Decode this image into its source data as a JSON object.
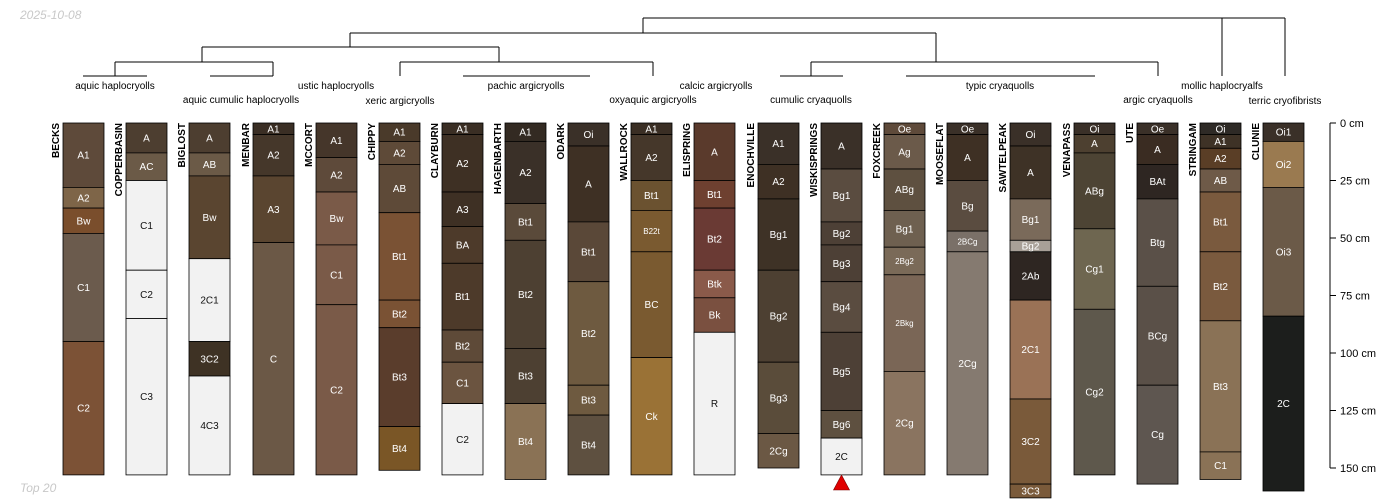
{
  "date_stamp": "2025-10-08",
  "footer_note": "Top 20",
  "depth_axis": {
    "unit": "cm",
    "ticks": [
      {
        "value": 0,
        "label": "0 cm"
      },
      {
        "value": 25,
        "label": "25 cm"
      },
      {
        "value": 50,
        "label": "50 cm"
      },
      {
        "value": 75,
        "label": "75 cm"
      },
      {
        "value": 100,
        "label": "100 cm"
      },
      {
        "value": 125,
        "label": "125 cm"
      },
      {
        "value": 150,
        "label": "150 cm"
      }
    ]
  },
  "truncation_marker": {
    "profile": "WISKISPRINGS",
    "color": "#e00000"
  },
  "subgroup_labels": [
    {
      "text": "aquic haplocryolls"
    },
    {
      "text": "aquic cumulic haplocryolls"
    },
    {
      "text": "ustic haplocryolls"
    },
    {
      "text": "xeric argicryolls"
    },
    {
      "text": "pachic argicryolls"
    },
    {
      "text": "calcic argicryolls"
    },
    {
      "text": "oxyaquic argicryolls"
    },
    {
      "text": "cumulic cryaquolls"
    },
    {
      "text": "typic cryaquolls"
    },
    {
      "text": "mollic haplocryalfs"
    },
    {
      "text": "argic cryaquolls"
    },
    {
      "text": "terric cryofibrists"
    }
  ],
  "profiles": [
    {
      "name": "BECKS",
      "horizons": [
        {
          "name": "A1",
          "top": 0,
          "bottom": 28,
          "color": "#5e4a3a"
        },
        {
          "name": "A2",
          "top": 28,
          "bottom": 37,
          "color": "#7e6548"
        },
        {
          "name": "Bw",
          "top": 37,
          "bottom": 48,
          "color": "#7a4e2c"
        },
        {
          "name": "C1",
          "top": 48,
          "bottom": 95,
          "color": "#6b5b4d"
        },
        {
          "name": "C2",
          "top": 95,
          "bottom": 153,
          "color": "#7c5236"
        }
      ]
    },
    {
      "name": "COPPERBASIN",
      "horizons": [
        {
          "name": "A",
          "top": 0,
          "bottom": 13,
          "color": "#4d3e30"
        },
        {
          "name": "AC",
          "top": 13,
          "bottom": 25,
          "color": "#6b5a47"
        },
        {
          "name": "C1",
          "top": 25,
          "bottom": 64,
          "color": "#f2f2f2"
        },
        {
          "name": "C2",
          "top": 64,
          "bottom": 85,
          "color": "#f2f2f2"
        },
        {
          "name": "C3",
          "top": 85,
          "bottom": 153,
          "color": "#f2f2f2"
        }
      ]
    },
    {
      "name": "BIGLOST",
      "horizons": [
        {
          "name": "A",
          "top": 0,
          "bottom": 13,
          "color": "#4d3e30"
        },
        {
          "name": "AB",
          "top": 13,
          "bottom": 23,
          "color": "#6b5a47"
        },
        {
          "name": "Bw",
          "top": 23,
          "bottom": 59,
          "color": "#5a4530"
        },
        {
          "name": "2C1",
          "top": 59,
          "bottom": 95,
          "color": "#f2f2f2"
        },
        {
          "name": "3C2",
          "top": 95,
          "bottom": 110,
          "color": "#3e3224"
        },
        {
          "name": "4C3",
          "top": 110,
          "bottom": 153,
          "color": "#f2f2f2"
        }
      ]
    },
    {
      "name": "MENBAR",
      "horizons": [
        {
          "name": "A1",
          "top": 0,
          "bottom": 5,
          "color": "#3a2e24"
        },
        {
          "name": "A2",
          "top": 5,
          "bottom": 23,
          "color": "#45372a"
        },
        {
          "name": "A3",
          "top": 23,
          "bottom": 52,
          "color": "#5a4530"
        },
        {
          "name": "C",
          "top": 52,
          "bottom": 153,
          "color": "#6b5846"
        }
      ]
    },
    {
      "name": "MCCORT",
      "horizons": [
        {
          "name": "A1",
          "top": 0,
          "bottom": 15,
          "color": "#45362a"
        },
        {
          "name": "A2",
          "top": 15,
          "bottom": 30,
          "color": "#5e4a3a"
        },
        {
          "name": "Bw",
          "top": 30,
          "bottom": 53,
          "color": "#7a5a48"
        },
        {
          "name": "C1",
          "top": 53,
          "bottom": 79,
          "color": "#7a5a48"
        },
        {
          "name": "C2",
          "top": 79,
          "bottom": 153,
          "color": "#7a5a48"
        }
      ]
    },
    {
      "name": "CHIPPY",
      "horizons": [
        {
          "name": "A1",
          "top": 0,
          "bottom": 8,
          "color": "#4a3a2a"
        },
        {
          "name": "A2",
          "top": 8,
          "bottom": 18,
          "color": "#5e4a38"
        },
        {
          "name": "AB",
          "top": 18,
          "bottom": 39,
          "color": "#5e4a38"
        },
        {
          "name": "Bt1",
          "top": 39,
          "bottom": 77,
          "color": "#7a5234"
        },
        {
          "name": "Bt2",
          "top": 77,
          "bottom": 89,
          "color": "#7a5234"
        },
        {
          "name": "Bt3",
          "top": 89,
          "bottom": 132,
          "color": "#5a3d2c"
        },
        {
          "name": "Bt4",
          "top": 132,
          "bottom": 151,
          "color": "#7a5626"
        }
      ]
    },
    {
      "name": "CLAYBURN",
      "horizons": [
        {
          "name": "A1",
          "top": 0,
          "bottom": 5,
          "color": "#3a2e24"
        },
        {
          "name": "A2",
          "top": 5,
          "bottom": 30,
          "color": "#3e3024"
        },
        {
          "name": "A3",
          "top": 30,
          "bottom": 45,
          "color": "#3e3024"
        },
        {
          "name": "BA",
          "top": 45,
          "bottom": 61,
          "color": "#4d3a2a"
        },
        {
          "name": "Bt1",
          "top": 61,
          "bottom": 90,
          "color": "#4d3a2a"
        },
        {
          "name": "Bt2",
          "top": 90,
          "bottom": 104,
          "color": "#5e4a38"
        },
        {
          "name": "C1",
          "top": 104,
          "bottom": 122,
          "color": "#6b5440"
        },
        {
          "name": "C2",
          "top": 122,
          "bottom": 153,
          "color": "#f2f2f2"
        }
      ]
    },
    {
      "name": "HAGENBARTH",
      "horizons": [
        {
          "name": "A1",
          "top": 0,
          "bottom": 8,
          "color": "#332a22"
        },
        {
          "name": "A2",
          "top": 8,
          "bottom": 35,
          "color": "#3a3028"
        },
        {
          "name": "Bt1",
          "top": 35,
          "bottom": 51,
          "color": "#5a4a3a"
        },
        {
          "name": "Bt2",
          "top": 51,
          "bottom": 98,
          "color": "#4d4032"
        },
        {
          "name": "Bt3",
          "top": 98,
          "bottom": 122,
          "color": "#4d4032"
        },
        {
          "name": "Bt4",
          "top": 122,
          "bottom": 155,
          "color": "#8a7255"
        }
      ]
    },
    {
      "name": "ODARK",
      "horizons": [
        {
          "name": "Oi",
          "top": 0,
          "bottom": 10,
          "color": "#3a3028"
        },
        {
          "name": "A",
          "top": 10,
          "bottom": 43,
          "color": "#3e3024"
        },
        {
          "name": "Bt1",
          "top": 43,
          "bottom": 69,
          "color": "#5a4838"
        },
        {
          "name": "Bt2",
          "top": 69,
          "bottom": 114,
          "color": "#6e5a40"
        },
        {
          "name": "Bt3",
          "top": 114,
          "bottom": 127,
          "color": "#6e5a40"
        },
        {
          "name": "Bt4",
          "top": 127,
          "bottom": 153,
          "color": "#5e5040"
        }
      ]
    },
    {
      "name": "WALLROCK",
      "horizons": [
        {
          "name": "A1",
          "top": 0,
          "bottom": 5,
          "color": "#3a2e24"
        },
        {
          "name": "A2",
          "top": 5,
          "bottom": 25,
          "color": "#45372a"
        },
        {
          "name": "Bt1",
          "top": 25,
          "bottom": 38,
          "color": "#6b5230"
        },
        {
          "name": "B22t",
          "top": 38,
          "bottom": 56,
          "color": "#7a5a30"
        },
        {
          "name": "BC",
          "top": 56,
          "bottom": 102,
          "color": "#7a5a30"
        },
        {
          "name": "Ck",
          "top": 102,
          "bottom": 153,
          "color": "#9a7236"
        }
      ]
    },
    {
      "name": "ELISPRING",
      "horizons": [
        {
          "name": "A",
          "top": 0,
          "bottom": 25,
          "color": "#5a3a2c"
        },
        {
          "name": "Bt1",
          "top": 25,
          "bottom": 37,
          "color": "#6e4030"
        },
        {
          "name": "Bt2",
          "top": 37,
          "bottom": 64,
          "color": "#6a3a34"
        },
        {
          "name": "Btk",
          "top": 64,
          "bottom": 76,
          "color": "#8a5a4a"
        },
        {
          "name": "Bk",
          "top": 76,
          "bottom": 91,
          "color": "#7a5040"
        },
        {
          "name": "R",
          "top": 91,
          "bottom": 153,
          "color": "#f2f2f2"
        }
      ]
    },
    {
      "name": "ENOCHVILLE",
      "horizons": [
        {
          "name": "A1",
          "top": 0,
          "bottom": 18,
          "color": "#3a3028"
        },
        {
          "name": "A2",
          "top": 18,
          "bottom": 33,
          "color": "#3e3024"
        },
        {
          "name": "Bg1",
          "top": 33,
          "bottom": 64,
          "color": "#3e3226"
        },
        {
          "name": "Bg2",
          "top": 64,
          "bottom": 104,
          "color": "#4d4032"
        },
        {
          "name": "Bg3",
          "top": 104,
          "bottom": 135,
          "color": "#5a4c3a"
        },
        {
          "name": "2Cg",
          "top": 135,
          "bottom": 150,
          "color": "#6b5844"
        }
      ]
    },
    {
      "name": "WISKISPRINGS",
      "horizons": [
        {
          "name": "A",
          "top": 0,
          "bottom": 20,
          "color": "#3a3028"
        },
        {
          "name": "Bg1",
          "top": 20,
          "bottom": 43,
          "color": "#5a4c40"
        },
        {
          "name": "Bg2",
          "top": 43,
          "bottom": 53,
          "color": "#4d4036"
        },
        {
          "name": "Bg3",
          "top": 53,
          "bottom": 69,
          "color": "#4d4036"
        },
        {
          "name": "Bg4",
          "top": 69,
          "bottom": 91,
          "color": "#5a4c40"
        },
        {
          "name": "Bg5",
          "top": 91,
          "bottom": 125,
          "color": "#4d4036"
        },
        {
          "name": "Bg6",
          "top": 125,
          "bottom": 137,
          "color": "#5e5040"
        },
        {
          "name": "2C",
          "top": 137,
          "bottom": 153,
          "color": "#f2f2f2"
        }
      ]
    },
    {
      "name": "FOXCREEK",
      "horizons": [
        {
          "name": "Oe",
          "top": 0,
          "bottom": 5,
          "color": "#5e4a3a"
        },
        {
          "name": "Ag",
          "top": 5,
          "bottom": 20,
          "color": "#6b5a4a"
        },
        {
          "name": "ABg",
          "top": 20,
          "bottom": 38,
          "color": "#5e5040"
        },
        {
          "name": "Bg1",
          "top": 38,
          "bottom": 54,
          "color": "#6e6050"
        },
        {
          "name": "2Bg2",
          "top": 54,
          "bottom": 66,
          "color": "#7a6a58"
        },
        {
          "name": "2Bkg",
          "top": 66,
          "bottom": 108,
          "color": "#7a6656"
        },
        {
          "name": "2Cg",
          "top": 108,
          "bottom": 153,
          "color": "#8a7460"
        }
      ]
    },
    {
      "name": "MOOSEFLAT",
      "horizons": [
        {
          "name": "Oe",
          "top": 0,
          "bottom": 5,
          "color": "#3a3028"
        },
        {
          "name": "A",
          "top": 5,
          "bottom": 25,
          "color": "#3e3024"
        },
        {
          "name": "Bg",
          "top": 25,
          "bottom": 47,
          "color": "#5a4c40"
        },
        {
          "name": "2BCg",
          "top": 47,
          "bottom": 56,
          "color": "#7a7068"
        },
        {
          "name": "2Cg",
          "top": 56,
          "bottom": 153,
          "color": "#857a70"
        }
      ]
    },
    {
      "name": "SAWTELPEAK",
      "horizons": [
        {
          "name": "Oi",
          "top": 0,
          "bottom": 10,
          "color": "#3a3028"
        },
        {
          "name": "A",
          "top": 10,
          "bottom": 33,
          "color": "#3e3226"
        },
        {
          "name": "Bg1",
          "top": 33,
          "bottom": 51,
          "color": "#7a6a5a"
        },
        {
          "name": "Bg2",
          "top": 51,
          "bottom": 56,
          "color": "#a8a098"
        },
        {
          "name": "2Ab",
          "top": 56,
          "bottom": 77,
          "color": "#2e2622"
        },
        {
          "name": "2C1",
          "top": 77,
          "bottom": 120,
          "color": "#9a7256"
        },
        {
          "name": "3C2",
          "top": 120,
          "bottom": 157,
          "color": "#7a5a3a"
        },
        {
          "name": "3C3",
          "top": 157,
          "bottom": 163,
          "color": "#7a5a3a"
        }
      ]
    },
    {
      "name": "VENAPASS",
      "horizons": [
        {
          "name": "Oi",
          "top": 0,
          "bottom": 5,
          "color": "#3a3028"
        },
        {
          "name": "A",
          "top": 5,
          "bottom": 13,
          "color": "#4d4030"
        },
        {
          "name": "ABg",
          "top": 13,
          "bottom": 46,
          "color": "#4d4434"
        },
        {
          "name": "Cg1",
          "top": 46,
          "bottom": 81,
          "color": "#6e6650"
        },
        {
          "name": "Cg2",
          "top": 81,
          "bottom": 153,
          "color": "#5e584c"
        }
      ]
    },
    {
      "name": "UTE",
      "horizons": [
        {
          "name": "Oe",
          "top": 0,
          "bottom": 5,
          "color": "#3a3028"
        },
        {
          "name": "A",
          "top": 5,
          "bottom": 18,
          "color": "#3a2c22"
        },
        {
          "name": "BAt",
          "top": 18,
          "bottom": 33,
          "color": "#2e2622"
        },
        {
          "name": "Btg",
          "top": 33,
          "bottom": 71,
          "color": "#5a5048"
        },
        {
          "name": "BCg",
          "top": 71,
          "bottom": 114,
          "color": "#5a5048"
        },
        {
          "name": "Cg",
          "top": 114,
          "bottom": 157,
          "color": "#5e5650"
        }
      ]
    },
    {
      "name": "STRINGAM",
      "horizons": [
        {
          "name": "Oi",
          "top": 0,
          "bottom": 5,
          "color": "#2e2a26"
        },
        {
          "name": "A1",
          "top": 5,
          "bottom": 11,
          "color": "#3e3226"
        },
        {
          "name": "A2",
          "top": 11,
          "bottom": 20,
          "color": "#5a3e26"
        },
        {
          "name": "AB",
          "top": 20,
          "bottom": 30,
          "color": "#6e5a48"
        },
        {
          "name": "Bt1",
          "top": 30,
          "bottom": 56,
          "color": "#7a5a3e"
        },
        {
          "name": "Bt2",
          "top": 56,
          "bottom": 86,
          "color": "#7a5a3e"
        },
        {
          "name": "Bt3",
          "top": 86,
          "bottom": 143,
          "color": "#8a7256"
        },
        {
          "name": "C1",
          "top": 143,
          "bottom": 155,
          "color": "#8a7256"
        }
      ]
    },
    {
      "name": "CLUNIE",
      "horizons": [
        {
          "name": "Oi1",
          "top": 0,
          "bottom": 8,
          "color": "#3a3028"
        },
        {
          "name": "Oi2",
          "top": 8,
          "bottom": 28,
          "color": "#9a7a50"
        },
        {
          "name": "Oi3",
          "top": 28,
          "bottom": 84,
          "color": "#6b5a48"
        },
        {
          "name": "2C",
          "top": 84,
          "bottom": 160,
          "color": "#1c1e1c"
        }
      ]
    }
  ]
}
